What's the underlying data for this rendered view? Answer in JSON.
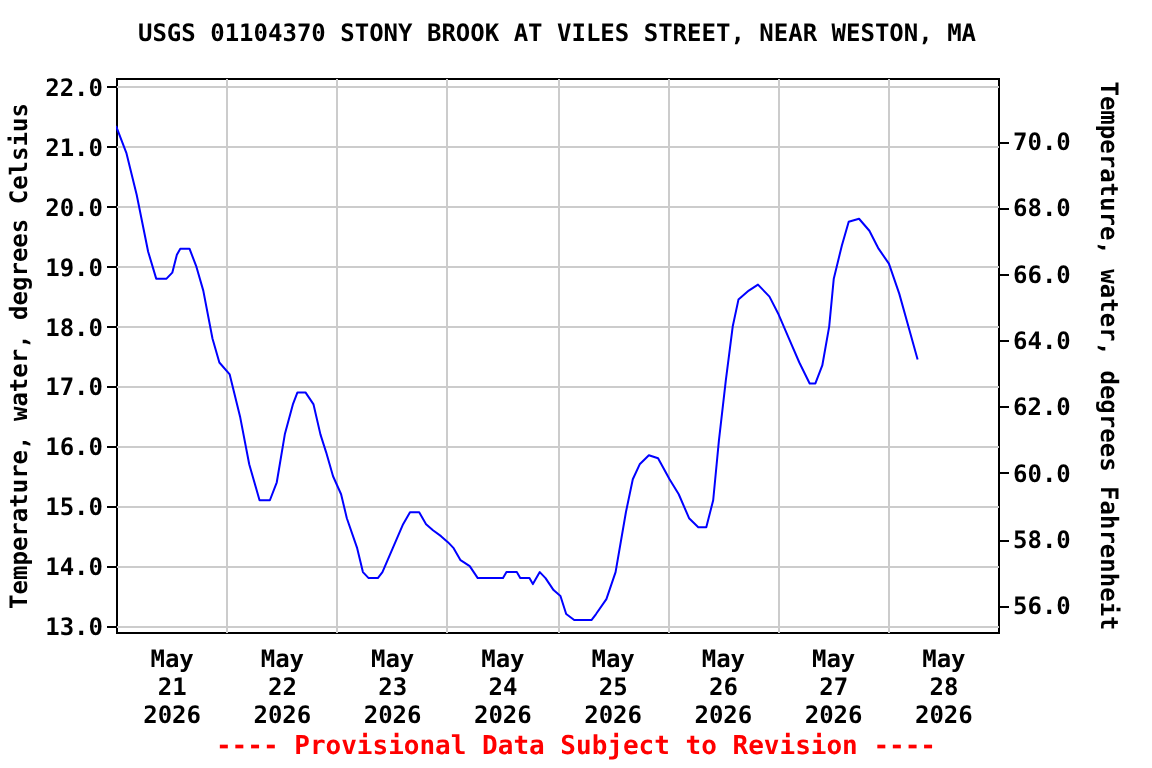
{
  "chart_data": {
    "type": "line",
    "title": "USGS 01104370 STONY BROOK AT VILES STREET, NEAR WESTON, MA",
    "ylabel": "Temperature, water, degrees Celsius",
    "y2label": "Temperature, water, degrees Fahrenheit",
    "annotations": [
      "---- Provisional Data Subject to Revision ----"
    ],
    "x": [
      "2026-05-21T00:00",
      "2026-05-21T02:15",
      "2026-05-21T04:30",
      "2026-05-21T07:00",
      "2026-05-21T08:45",
      "2026-05-21T11:00",
      "2026-05-21T12:15",
      "2026-05-21T13:15",
      "2026-05-21T14:00",
      "2026-05-21T16:00",
      "2026-05-21T17:30",
      "2026-05-21T19:00",
      "2026-05-21T21:00",
      "2026-05-21T22:30",
      "2026-05-22T00:45",
      "2026-05-22T03:00",
      "2026-05-22T05:00",
      "2026-05-22T07:15",
      "2026-05-22T09:30",
      "2026-05-22T11:00",
      "2026-05-22T12:45",
      "2026-05-22T14:30",
      "2026-05-22T15:30",
      "2026-05-22T17:15",
      "2026-05-22T19:00",
      "2026-05-22T20:30",
      "2026-05-22T21:45",
      "2026-05-22T23:15",
      "2026-05-23T01:00",
      "2026-05-23T02:15",
      "2026-05-23T04:30",
      "2026-05-23T05:45",
      "2026-05-23T07:00",
      "2026-05-23T09:00",
      "2026-05-23T10:00",
      "2026-05-23T12:15",
      "2026-05-23T14:30",
      "2026-05-23T16:00",
      "2026-05-23T18:00",
      "2026-05-23T19:30",
      "2026-05-23T21:00",
      "2026-05-23T22:45",
      "2026-05-24T00:15",
      "2026-05-24T01:30",
      "2026-05-24T03:00",
      "2026-05-24T05:00",
      "2026-05-24T06:45",
      "2026-05-24T12:15",
      "2026-05-24T13:00",
      "2026-05-24T15:15",
      "2026-05-24T16:00",
      "2026-05-24T18:00",
      "2026-05-24T18:45",
      "2026-05-24T20:15",
      "2026-05-24T21:30",
      "2026-05-24T23:15",
      "2026-05-25T00:45",
      "2026-05-25T02:00",
      "2026-05-25T03:45",
      "2026-05-25T07:30",
      "2026-05-25T08:30",
      "2026-05-25T10:45",
      "2026-05-25T12:45",
      "2026-05-25T15:00",
      "2026-05-25T16:30",
      "2026-05-25T18:00",
      "2026-05-25T20:00",
      "2026-05-25T22:00",
      "2026-05-26T00:30",
      "2026-05-26T02:30",
      "2026-05-26T04:45",
      "2026-05-26T06:45",
      "2026-05-26T08:30",
      "2026-05-26T10:00",
      "2026-05-26T11:15",
      "2026-05-26T12:45",
      "2026-05-26T14:15",
      "2026-05-26T15:30",
      "2026-05-26T17:45",
      "2026-05-26T19:45",
      "2026-05-26T22:15",
      "2026-05-27T00:15",
      "2026-05-27T02:30",
      "2026-05-27T04:45",
      "2026-05-27T07:00",
      "2026-05-27T08:15",
      "2026-05-27T09:45",
      "2026-05-27T11:15",
      "2026-05-27T12:15",
      "2026-05-27T14:00",
      "2026-05-27T15:30",
      "2026-05-27T17:45",
      "2026-05-27T20:00",
      "2026-05-27T22:00",
      "2026-05-28T00:15",
      "2026-05-28T02:30",
      "2026-05-28T04:30",
      "2026-05-28T06:30"
    ],
    "series": [
      {
        "color": "#0000ff",
        "values": [
          21.35,
          20.9,
          20.2,
          19.25,
          18.8,
          18.8,
          18.9,
          19.2,
          19.3,
          19.3,
          19.0,
          18.6,
          17.8,
          17.4,
          17.2,
          16.5,
          15.7,
          15.1,
          15.1,
          15.4,
          16.2,
          16.7,
          16.9,
          16.9,
          16.7,
          16.2,
          15.9,
          15.5,
          15.2,
          14.8,
          14.3,
          13.9,
          13.8,
          13.8,
          13.9,
          14.3,
          14.7,
          14.9,
          14.9,
          14.7,
          14.6,
          14.5,
          14.4,
          14.3,
          14.1,
          14.0,
          13.8,
          13.8,
          13.9,
          13.9,
          13.8,
          13.8,
          13.7,
          13.9,
          13.8,
          13.6,
          13.5,
          13.2,
          13.1,
          13.1,
          13.2,
          13.45,
          13.9,
          14.9,
          15.45,
          15.7,
          15.85,
          15.8,
          15.45,
          15.2,
          14.8,
          14.65,
          14.65,
          15.1,
          16.1,
          17.1,
          18.0,
          18.45,
          18.6,
          18.7,
          18.5,
          18.2,
          17.8,
          17.4,
          17.05,
          17.05,
          17.35,
          18.0,
          18.8,
          19.35,
          19.75,
          19.8,
          19.6,
          19.3,
          19.05,
          18.55,
          18.0,
          17.45
        ]
      }
    ],
    "xlim": [
      "2026-05-21",
      "2026-05-29"
    ],
    "xticks": [
      {
        "value": "2026-05-21T12:00",
        "label": "May 21 2026"
      },
      {
        "value": "2026-05-22T12:00",
        "label": "May 22 2026"
      },
      {
        "value": "2026-05-23T12:00",
        "label": "May 23 2026"
      },
      {
        "value": "2026-05-24T12:00",
        "label": "May 24 2026"
      },
      {
        "value": "2026-05-25T12:00",
        "label": "May 25 2026"
      },
      {
        "value": "2026-05-26T12:00",
        "label": "May 26 2026"
      },
      {
        "value": "2026-05-27T12:00",
        "label": "May 27 2026"
      },
      {
        "value": "2026-05-28T12:00",
        "label": "May 28 2026"
      },
      {
        "value": "2026-05-22T00:00",
        "label": null
      },
      {
        "value": "2026-05-23T00:00",
        "label": null
      },
      {
        "value": "2026-05-24T00:00",
        "label": null
      },
      {
        "value": "2026-05-25T00:00",
        "label": null
      },
      {
        "value": "2026-05-26T00:00",
        "label": null
      },
      {
        "value": "2026-05-27T00:00",
        "label": null
      },
      {
        "value": "2026-05-28T00:00",
        "label": null
      }
    ],
    "ylim": [
      12.9,
      22.15
    ],
    "yticks": [
      {
        "value": 13,
        "label": "13.0"
      },
      {
        "value": 14,
        "label": "14.0"
      },
      {
        "value": 15,
        "label": "15.0"
      },
      {
        "value": 16,
        "label": "16.0"
      },
      {
        "value": 17,
        "label": "17.0"
      },
      {
        "value": 18,
        "label": "18.0"
      },
      {
        "value": 19,
        "label": "19.0"
      },
      {
        "value": 20,
        "label": "20.0"
      },
      {
        "value": 21,
        "label": "21.0"
      },
      {
        "value": 22,
        "label": "22.0"
      }
    ],
    "y2lim": [
      55.2,
      71.9
    ],
    "y2ticks": [
      {
        "value": 56,
        "label": "56.0"
      },
      {
        "value": 58,
        "label": "58.0"
      },
      {
        "value": 60,
        "label": "60.0"
      },
      {
        "value": 62,
        "label": "62.0"
      },
      {
        "value": 64,
        "label": "64.0"
      },
      {
        "value": 66,
        "label": "66.0"
      },
      {
        "value": 68,
        "label": "68.0"
      },
      {
        "value": 70,
        "label": "70.0"
      }
    ],
    "grid": true
  }
}
